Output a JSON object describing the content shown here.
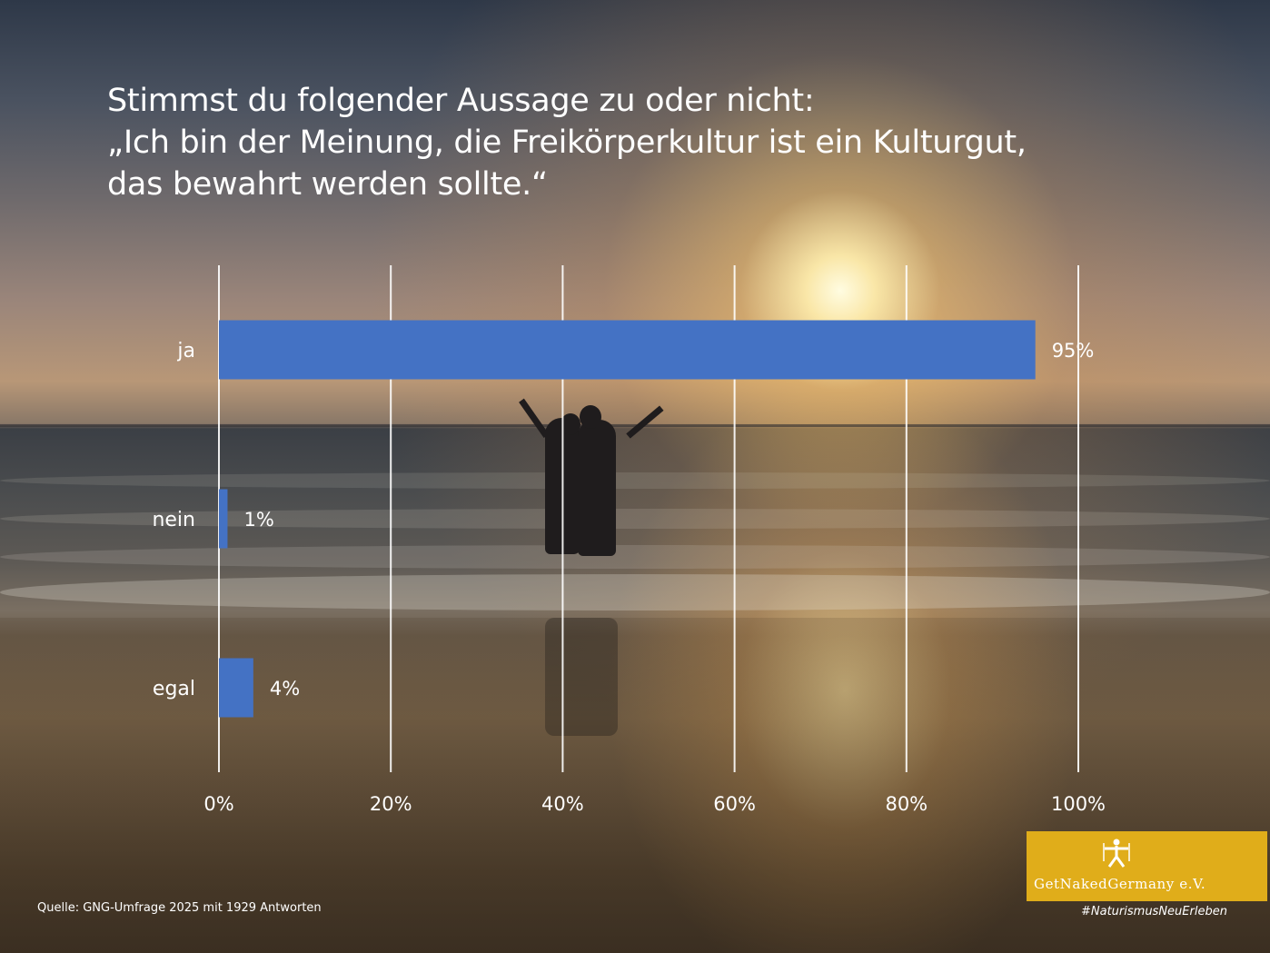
{
  "title": {
    "line1": "Stimmst du folgender Aussage zu oder nicht:",
    "line2": "„Ich bin der Meinung, die Freikörperkultur ist ein Kulturgut,",
    "line3": "das bewahrt werden sollte.“"
  },
  "chart_data": {
    "type": "bar",
    "orientation": "horizontal",
    "title": "Stimmst du folgender Aussage zu oder nicht: „Ich bin der Meinung, die Freikörperkultur ist ein Kulturgut, das bewahrt werden sollte.“",
    "categories": [
      "ja",
      "nein",
      "egal"
    ],
    "values": [
      95,
      1,
      4
    ],
    "value_labels": [
      "95%",
      "1%",
      "4%"
    ],
    "xlim": [
      0,
      100
    ],
    "x_ticks": [
      0,
      20,
      40,
      60,
      80,
      100
    ],
    "x_tick_labels": [
      "0%",
      "20%",
      "40%",
      "60%",
      "80%",
      "100%"
    ],
    "xlabel": "",
    "ylabel": "",
    "grid": true,
    "bar_color": "#4472c4",
    "gridline_color": "#ffffff"
  },
  "source": "Quelle: GNG-Umfrage 2025 mit 1929 Antworten",
  "logo": {
    "text": "GetNakedGermany e.V.",
    "background_color": "#e0ad1a",
    "icon": "vitruvian-figure-icon"
  },
  "hashtag": "#NaturismusNeuErleben"
}
